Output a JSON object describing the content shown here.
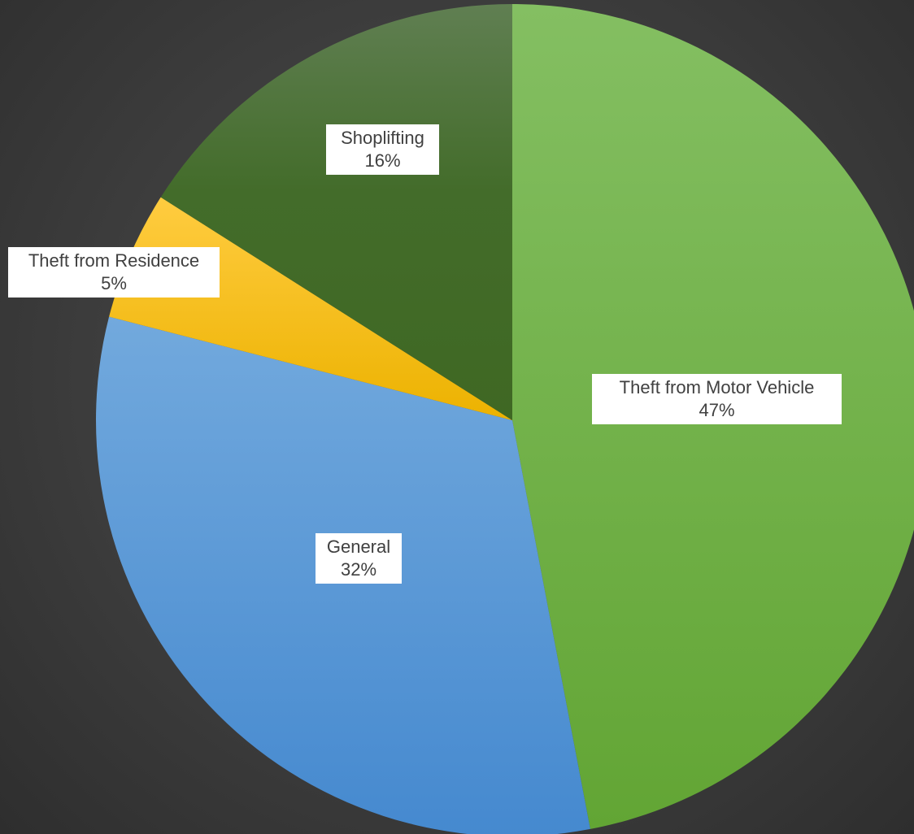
{
  "chart_data": {
    "type": "pie",
    "title": "",
    "slices": [
      {
        "name": "Theft from Motor Vehicle",
        "value": 47,
        "label": "47%",
        "color": "#70ad47"
      },
      {
        "name": "General",
        "value": 32,
        "label": "32%",
        "color": "#5b9bd5"
      },
      {
        "name": "Theft from Residence",
        "value": 5,
        "label": "5%",
        "color": "#ffc000"
      },
      {
        "name": "Shoplifting",
        "value": 16,
        "label": "16%",
        "color": "#4a7a2e"
      }
    ],
    "start_angle": "12 o'clock",
    "direction": "clockwise",
    "legend": "none",
    "data_labels": "category name and percentage"
  }
}
